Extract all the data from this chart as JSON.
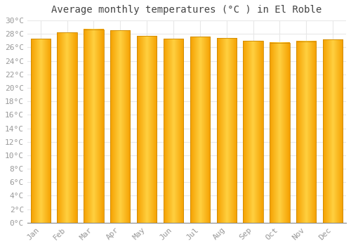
{
  "title": "Average monthly temperatures (°C ) in El Roble",
  "months": [
    "Jan",
    "Feb",
    "Mar",
    "Apr",
    "May",
    "Jun",
    "Jul",
    "Aug",
    "Sep",
    "Oct",
    "Nov",
    "Dec"
  ],
  "values": [
    27.3,
    28.2,
    28.7,
    28.5,
    27.7,
    27.3,
    27.6,
    27.4,
    27.0,
    26.7,
    26.9,
    27.2
  ],
  "bar_color_center": "#FFD040",
  "bar_color_edge": "#F5A000",
  "bar_edge_color": "#CC8800",
  "ylim": [
    0,
    30
  ],
  "ytick_step": 2,
  "background_color": "#FFFFFF",
  "plot_bg_color": "#FFFFFF",
  "grid_color": "#E8E8E8",
  "title_fontsize": 10,
  "tick_fontsize": 8,
  "tick_color": "#999999",
  "title_color": "#444444"
}
